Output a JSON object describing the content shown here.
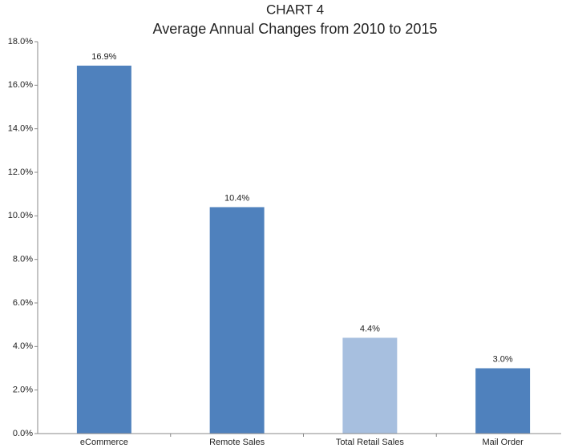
{
  "chart_data": {
    "type": "bar",
    "title": "CHART 4",
    "subtitle": "Average Annual Changes from 2010 to 2015",
    "categories": [
      "eCommerce",
      "Remote Sales",
      "Total Retail Sales",
      "Mail Order"
    ],
    "values": [
      16.9,
      10.4,
      4.4,
      3.0
    ],
    "value_labels": [
      "16.9%",
      "10.4%",
      "4.4%",
      "3.0%"
    ],
    "colors": [
      "#4f81bd",
      "#4f81bd",
      "#a7bfdf",
      "#4f81bd"
    ],
    "ylim": [
      0,
      18
    ],
    "yticks": [
      {
        "value": 0,
        "label": "0.0%"
      },
      {
        "value": 2,
        "label": "2.0%"
      },
      {
        "value": 4,
        "label": "4.0%"
      },
      {
        "value": 6,
        "label": "6.0%"
      },
      {
        "value": 8,
        "label": "8.0%"
      },
      {
        "value": 10,
        "label": "10.0%"
      },
      {
        "value": 12,
        "label": "12.0%"
      },
      {
        "value": 14,
        "label": "14.0%"
      },
      {
        "value": 16,
        "label": "16.0%"
      },
      {
        "value": 18,
        "label": "18.0%"
      }
    ],
    "grid": false
  }
}
